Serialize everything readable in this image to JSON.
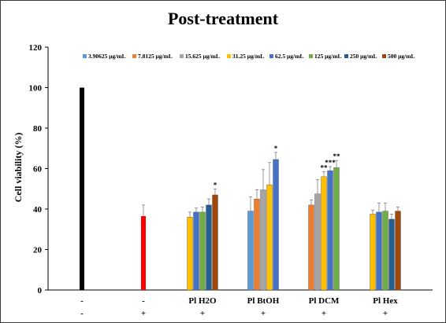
{
  "chart_data": {
    "type": "bar",
    "title": "Post-treatment",
    "xlabel": "",
    "ylabel": "Cell viability (%)",
    "ylim": [
      0,
      120
    ],
    "yticks": [
      0,
      20,
      40,
      60,
      80,
      100,
      120
    ],
    "grid": false,
    "legend_position": "top-right",
    "group_labels_row1": [
      "-",
      "-",
      "Pl H2O",
      "Pl BtOH",
      "Pl DCM",
      "Pl Hex"
    ],
    "group_labels_row2": [
      "-",
      "+",
      "+",
      "+",
      "+",
      "+"
    ],
    "legend": [
      {
        "label": "3.90625 μg/mL",
        "color": "#5b9bd5"
      },
      {
        "label": "7.8125 μg/mL",
        "color": "#ed7d31"
      },
      {
        "label": "15.625 μg/mL",
        "color": "#a5a5a5"
      },
      {
        "label": "31.25 μg/mL",
        "color": "#ffc000"
      },
      {
        "label": "62.5 μg/mL",
        "color": "#4472c4"
      },
      {
        "label": "125 μg/mL",
        "color": "#70ad47"
      },
      {
        "label": "250 μg/mL",
        "color": "#255e91"
      },
      {
        "label": "500 μg/mL",
        "color": "#9e480e"
      }
    ],
    "groups": [
      {
        "bars": [
          {
            "value": 100,
            "error": 0,
            "color": "#000000"
          }
        ]
      },
      {
        "bars": [
          {
            "value": 36.5,
            "error": 5.5,
            "color": "#ff0000"
          }
        ]
      },
      {
        "bars": [
          {
            "value": 36.0,
            "error": 2.5,
            "color": "#ffc000"
          },
          {
            "value": 38.5,
            "error": 2.0,
            "color": "#4472c4"
          },
          {
            "value": 38.5,
            "error": 2.5,
            "color": "#70ad47"
          },
          {
            "value": 42.0,
            "error": 3.0,
            "color": "#255e91"
          },
          {
            "value": 47.0,
            "error": 3.0,
            "color": "#9e480e",
            "sig": "*"
          }
        ]
      },
      {
        "bars": [
          {
            "value": 39.0,
            "error": 7.0,
            "color": "#5b9bd5"
          },
          {
            "value": 45.0,
            "error": 4.5,
            "color": "#ed7d31"
          },
          {
            "value": 49.5,
            "error": 10.0,
            "color": "#a5a5a5"
          },
          {
            "value": 52.0,
            "error": 11.0,
            "color": "#ffc000"
          },
          {
            "value": 64.5,
            "error": 3.5,
            "color": "#4472c4",
            "sig": "*"
          }
        ]
      },
      {
        "bars": [
          {
            "value": 42.0,
            "error": 2.5,
            "color": "#ed7d31"
          },
          {
            "value": 47.5,
            "error": 7.0,
            "color": "#a5a5a5"
          },
          {
            "value": 56.0,
            "error": 2.5,
            "color": "#ffc000",
            "sig": "**"
          },
          {
            "value": 59.0,
            "error": 2.0,
            "color": "#4472c4",
            "sig": "***"
          },
          {
            "value": 60.5,
            "error": 3.5,
            "color": "#70ad47",
            "sig": "**"
          }
        ]
      },
      {
        "bars": [
          {
            "value": 37.5,
            "error": 2.0,
            "color": "#ffc000"
          },
          {
            "value": 38.5,
            "error": 4.5,
            "color": "#4472c4"
          },
          {
            "value": 39.0,
            "error": 4.0,
            "color": "#70ad47"
          },
          {
            "value": 35.0,
            "error": 2.5,
            "color": "#255e91"
          },
          {
            "value": 39.0,
            "error": 2.0,
            "color": "#9e480e"
          }
        ]
      }
    ]
  }
}
